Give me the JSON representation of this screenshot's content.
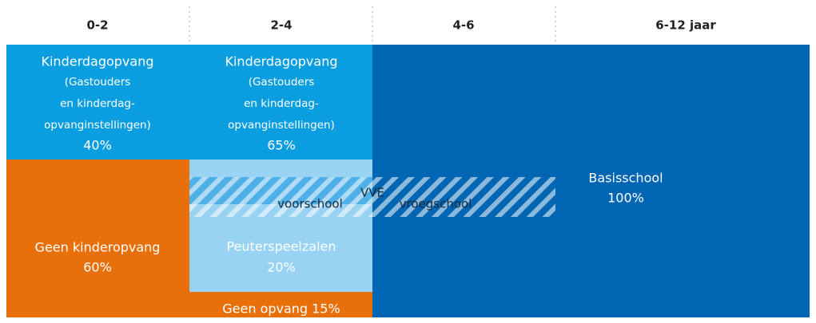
{
  "header": {
    "columns": [
      "0-2",
      "2-4",
      "4-6",
      "6-12 jaar"
    ]
  },
  "blocks": {
    "daycare_0_2": {
      "title": "Kinderdagopvang",
      "details": [
        "(Gastouders",
        "en kinderdag-",
        "opvanginstellingen)"
      ],
      "share": "40%"
    },
    "daycare_2_4": {
      "title": "Kinderdagopvang",
      "details": [
        "(Gastouders",
        "en kinderdag-",
        "opvanginstellingen)"
      ],
      "share": "65%"
    },
    "no_childcare": {
      "title": "Geen kinderopvang",
      "share": "60%"
    },
    "playgroups": {
      "title": "Peuterspeelzalen",
      "share": "20%"
    },
    "no_care": {
      "label": "Geen opvang 15%"
    },
    "primary_school": {
      "title": "Basisschool",
      "share": "100%"
    },
    "vve": {
      "label": "VVE",
      "preschool": "voorschool",
      "early_school": "vroegschool"
    }
  }
}
